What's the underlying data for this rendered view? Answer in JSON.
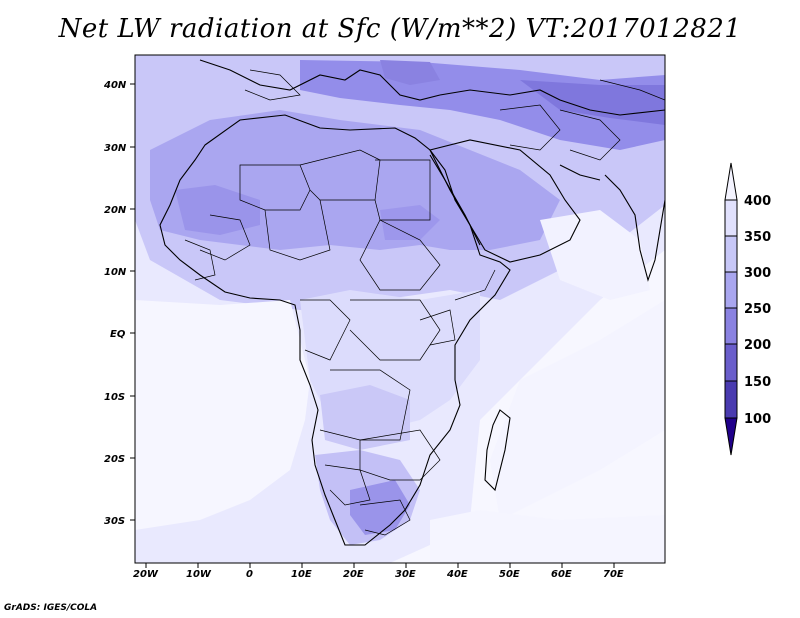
{
  "title": "Net LW radiation at Sfc (W/m**2) VT:2017012821",
  "credit": "GrADS: IGES/COLA",
  "map": {
    "lat_labels": [
      "40N",
      "30N",
      "20N",
      "10N",
      "EQ",
      "10S",
      "20S",
      "30S"
    ],
    "lon_labels": [
      "20W",
      "10W",
      "0",
      "10E",
      "20E",
      "30E",
      "40E",
      "50E",
      "60E",
      "70E"
    ],
    "lon_range": [
      -22,
      80
    ],
    "lat_range": [
      -37,
      45
    ]
  },
  "colorbar": {
    "levels": [
      "400",
      "350",
      "300",
      "250",
      "200",
      "150",
      "100"
    ],
    "colors": [
      "#f4f4ff",
      "#e1e1fd",
      "#c7c7f7",
      "#a9a6ef",
      "#8a82e1",
      "#6a5ecb",
      "#4a3bb0",
      "#2e1a8f",
      "#20008a"
    ]
  }
}
